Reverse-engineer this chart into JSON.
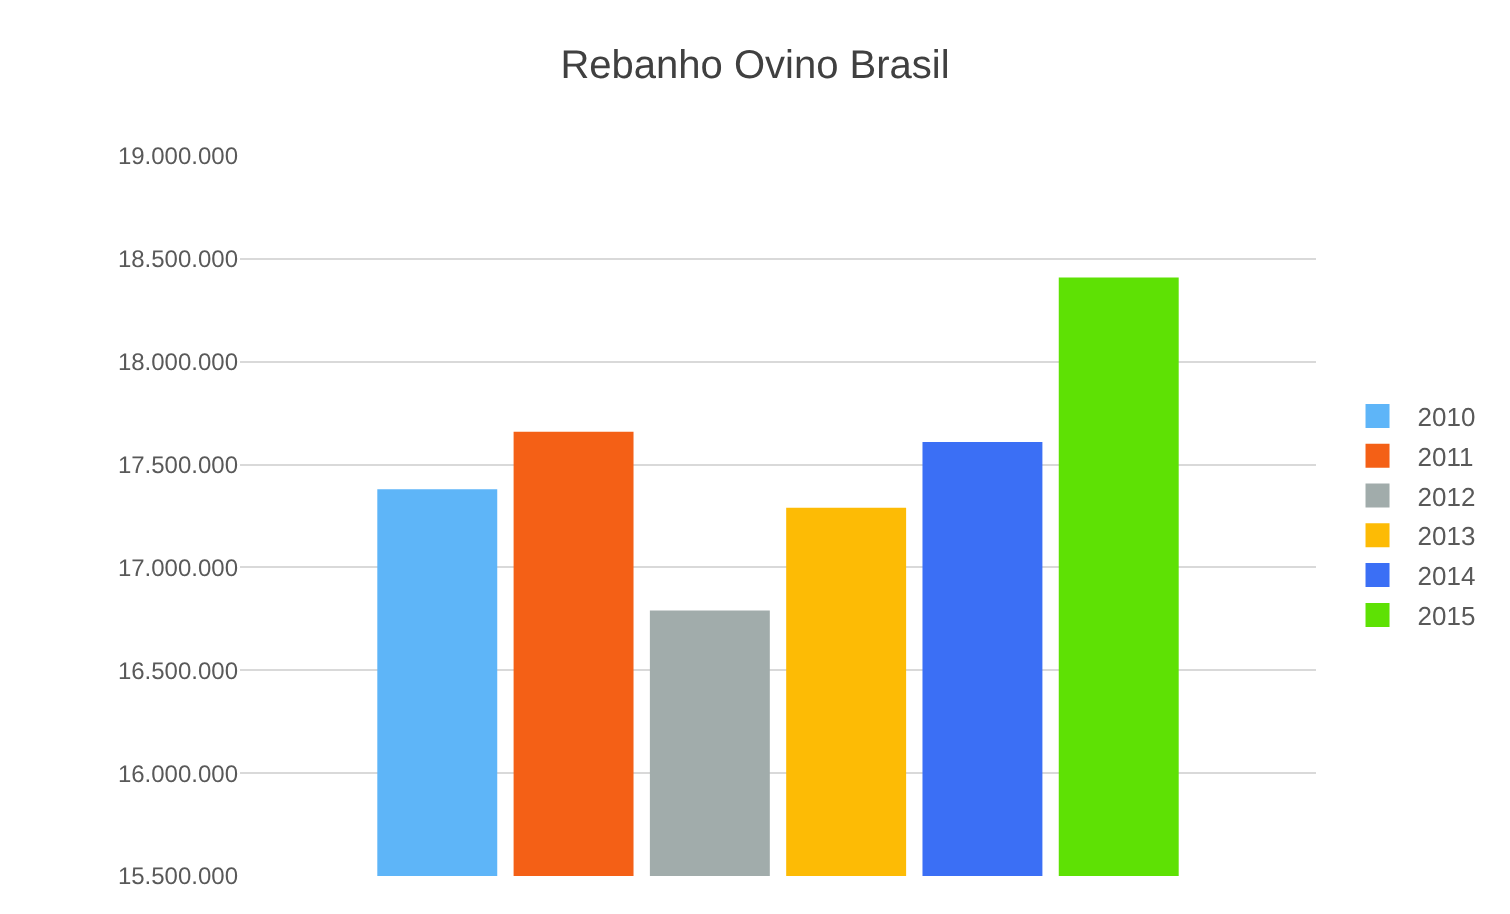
{
  "chart_data": {
    "type": "bar",
    "title": "Rebanho Ovino Brasil",
    "categories": [
      null
    ],
    "series": [
      {
        "name": "2010",
        "color": "#5eb5f8",
        "values": [
          17380000
        ]
      },
      {
        "name": "2011",
        "color": "#f46016",
        "values": [
          17660000
        ]
      },
      {
        "name": "2012",
        "color": "#a1acab",
        "values": [
          16790000
        ]
      },
      {
        "name": "2013",
        "color": "#fdbb05",
        "values": [
          17290000
        ]
      },
      {
        "name": "2014",
        "color": "#3b6ff5",
        "values": [
          17610000
        ]
      },
      {
        "name": "2015",
        "color": "#5ee104",
        "values": [
          18410000
        ]
      }
    ],
    "ylim": [
      15500000,
      19000000
    ],
    "yticks": [
      {
        "value": 15500000,
        "label": "15.500.000"
      },
      {
        "value": 16000000,
        "label": "16.000.000"
      },
      {
        "value": 16500000,
        "label": "16.500.000"
      },
      {
        "value": 17000000,
        "label": "17.000.000"
      },
      {
        "value": 17500000,
        "label": "17.500.000"
      },
      {
        "value": 18000000,
        "label": "18.000.000"
      },
      {
        "value": 18500000,
        "label": "18.500.000"
      },
      {
        "value": 19000000,
        "label": "19.000.000"
      }
    ],
    "grid": "y",
    "legend": "right"
  }
}
